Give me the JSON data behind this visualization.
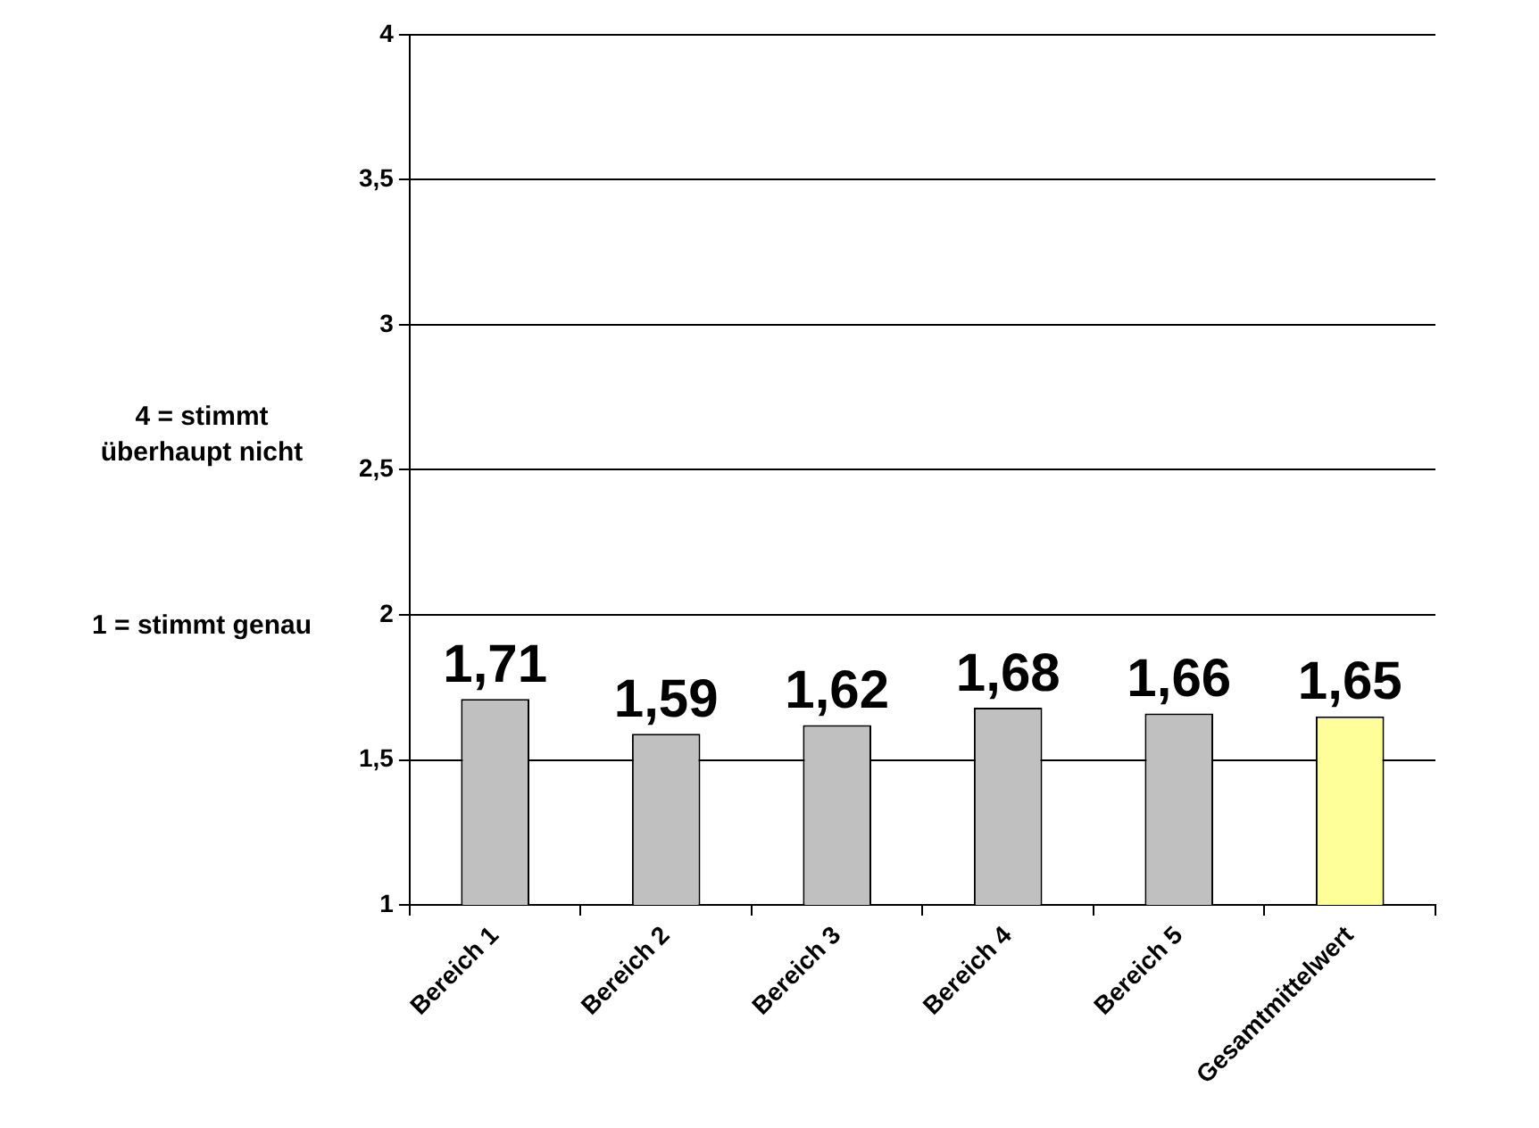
{
  "chart_data": {
    "type": "bar",
    "categories": [
      "Bereich 1",
      "Bereich 2",
      "Bereich 3",
      "Bereich 4",
      "Bereich 5",
      "Gesamtmittelwert"
    ],
    "values": [
      1.71,
      1.59,
      1.62,
      1.68,
      1.66,
      1.65
    ],
    "value_labels": [
      "1,71",
      "1,59",
      "1,62",
      "1,68",
      "1,66",
      "1,65"
    ],
    "colors": [
      "#c0c0c0",
      "#c0c0c0",
      "#c0c0c0",
      "#c0c0c0",
      "#c0c0c0",
      "#ffff99"
    ],
    "ylim": [
      1,
      4
    ],
    "yticks": [
      1,
      {
        "value": 1.5,
        "label": "1,5"
      },
      2,
      {
        "value": 2.5,
        "label": "2,5"
      },
      3,
      {
        "value": 3.5,
        "label": "3,5"
      },
      4
    ],
    "grid": "y",
    "annotations": [
      "4 = stimmt überhaupt nicht",
      "1 = stimmt genau"
    ]
  }
}
